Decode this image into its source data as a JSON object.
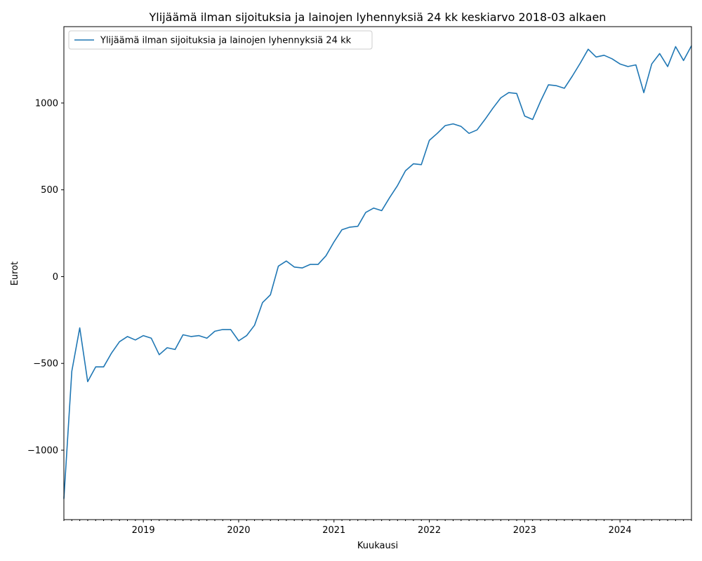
{
  "chart_data": {
    "type": "line",
    "title": "Ylijäämä ilman sijoituksia ja lainojen lyhennyksiä 24 kk keskiarvo 2018-03 alkaen",
    "xlabel": "Kuukausi",
    "ylabel": "Eurot",
    "ylim": [
      -1400,
      1440
    ],
    "xlim": [
      "2018-03",
      "2024-10"
    ],
    "yticks": [
      -1000,
      -500,
      0,
      500,
      1000
    ],
    "xtick_labels": [
      "2019",
      "2020",
      "2021",
      "2022",
      "2023",
      "2024"
    ],
    "grid": false,
    "legend_position": "top-left",
    "series": [
      {
        "name": "Ylijäämä ilman sijoituksia ja lainojen lyhennyksiä 24 kk",
        "color": "#1f77b4",
        "x": [
          "2018-03",
          "2018-04",
          "2018-05",
          "2018-06",
          "2018-07",
          "2018-08",
          "2018-09",
          "2018-10",
          "2018-11",
          "2018-12",
          "2019-01",
          "2019-02",
          "2019-03",
          "2019-04",
          "2019-05",
          "2019-06",
          "2019-07",
          "2019-08",
          "2019-09",
          "2019-10",
          "2019-11",
          "2019-12",
          "2020-01",
          "2020-02",
          "2020-03",
          "2020-04",
          "2020-05",
          "2020-06",
          "2020-07",
          "2020-08",
          "2020-09",
          "2020-10",
          "2020-11",
          "2020-12",
          "2021-01",
          "2021-02",
          "2021-03",
          "2021-04",
          "2021-05",
          "2021-06",
          "2021-07",
          "2021-08",
          "2021-09",
          "2021-10",
          "2021-11",
          "2021-12",
          "2022-01",
          "2022-02",
          "2022-03",
          "2022-04",
          "2022-05",
          "2022-06",
          "2022-07",
          "2022-08",
          "2022-09",
          "2022-10",
          "2022-11",
          "2022-12",
          "2023-01",
          "2023-02",
          "2023-03",
          "2023-04",
          "2023-05",
          "2023-06",
          "2023-07",
          "2023-08",
          "2023-09",
          "2023-10",
          "2023-11",
          "2023-12",
          "2024-01",
          "2024-02",
          "2024-03",
          "2024-04",
          "2024-05",
          "2024-06",
          "2024-07",
          "2024-08",
          "2024-09",
          "2024-10"
        ],
        "values": [
          -1280,
          -545,
          -295,
          -605,
          -520,
          -520,
          -440,
          -375,
          -345,
          -365,
          -340,
          -355,
          -450,
          -410,
          -420,
          -335,
          -345,
          -340,
          -355,
          -315,
          -305,
          -305,
          -370,
          -340,
          -280,
          -150,
          -105,
          60,
          90,
          55,
          50,
          70,
          70,
          120,
          200,
          270,
          285,
          290,
          370,
          395,
          380,
          455,
          525,
          610,
          650,
          645,
          785,
          825,
          870,
          880,
          865,
          825,
          845,
          905,
          970,
          1030,
          1060,
          1055,
          925,
          905,
          1010,
          1105,
          1100,
          1085,
          1155,
          1230,
          1310,
          1265,
          1275,
          1255,
          1225,
          1210,
          1220,
          1060,
          1225,
          1285,
          1210,
          1325,
          1245,
          1330
        ]
      }
    ]
  }
}
